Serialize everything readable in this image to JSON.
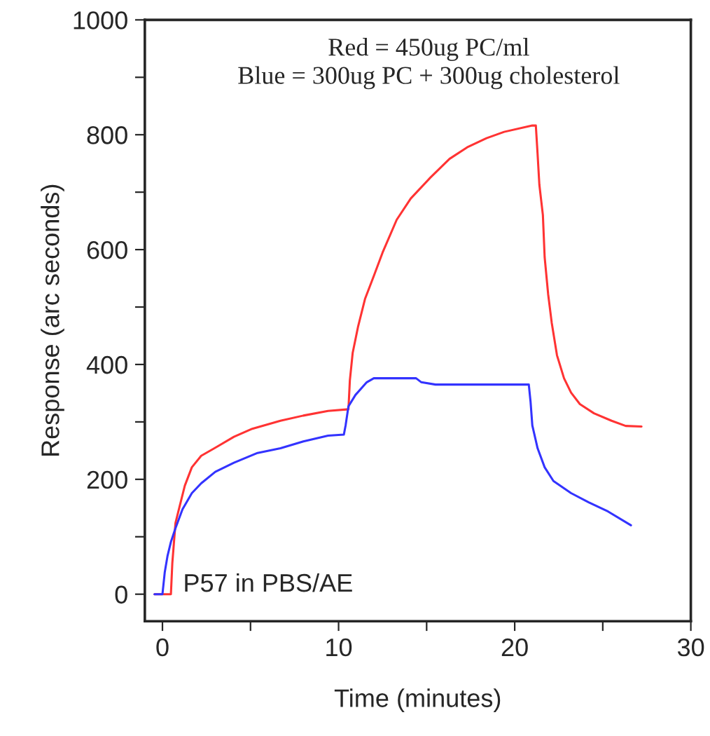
{
  "chart_data": {
    "type": "line",
    "xlabel": "Time (minutes)",
    "ylabel": "Response (arc seconds)",
    "annotations": [
      "Red = 450ug PC/ml\nBlue = 300ug PC + 300ug cholesterol",
      "P57 in PBS/AE"
    ],
    "xlim": [
      -1,
      30
    ],
    "ylim": [
      -47,
      1000
    ],
    "xticks": [
      0,
      {
        "value": 5,
        "label": null
      },
      10,
      {
        "value": 15,
        "label": null
      },
      20,
      {
        "value": 25,
        "label": null
      },
      30
    ],
    "yticks": [
      0,
      {
        "value": 100,
        "label": null
      },
      200,
      {
        "value": 300,
        "label": null
      },
      400,
      {
        "value": 500,
        "label": null
      },
      600,
      {
        "value": 700,
        "label": null
      },
      800,
      {
        "value": 900,
        "label": null
      },
      1000
    ],
    "grid": false,
    "legend": false,
    "marker": "none",
    "line_style": "solid",
    "series": [
      {
        "color": "#ff3333",
        "x": [
          -0.45,
          0.48,
          0.56,
          0.74,
          1.0,
          1.27,
          1.67,
          2.2,
          3.0,
          4.06,
          5.1,
          6.7,
          8.0,
          9.4,
          10.56,
          10.64,
          10.8,
          11.1,
          11.5,
          12.0,
          12.5,
          13.3,
          14.1,
          15.2,
          16.3,
          17.3,
          18.4,
          19.4,
          21.0,
          21.2,
          21.3,
          21.4,
          21.6,
          21.7,
          21.9,
          22.1,
          22.4,
          22.8,
          23.2,
          23.7,
          24.5,
          25.5,
          26.3,
          27.2
        ],
        "values": [
          0,
          0,
          54,
          124,
          156,
          189,
          221,
          241,
          255,
          274,
          288,
          302,
          311,
          319,
          322,
          372,
          420,
          465,
          514,
          554,
          595,
          652,
          689,
          725,
          758,
          778,
          794,
          805,
          816,
          816,
          766,
          713,
          660,
          587,
          522,
          473,
          416,
          376,
          351,
          331,
          315,
          302,
          293,
          292
        ]
      },
      {
        "color": "#3333ff",
        "x": [
          -0.45,
          0,
          0.13,
          0.29,
          0.48,
          0.74,
          1.14,
          1.67,
          2.2,
          3.0,
          4.06,
          5.4,
          6.7,
          8.0,
          9.4,
          10.3,
          10.4,
          10.56,
          10.96,
          11.6,
          12.0,
          14.4,
          14.7,
          15.5,
          20.8,
          20.9,
          21.0,
          21.3,
          21.7,
          22.2,
          23.2,
          24.2,
          25.3,
          26.6
        ],
        "values": [
          0,
          0,
          38,
          67,
          91,
          115,
          148,
          176,
          193,
          213,
          229,
          246,
          254,
          266,
          276,
          278,
          294,
          327,
          347,
          369,
          376,
          376,
          369,
          365,
          365,
          335,
          294,
          254,
          221,
          197,
          176,
          160,
          144,
          120
        ]
      }
    ]
  }
}
